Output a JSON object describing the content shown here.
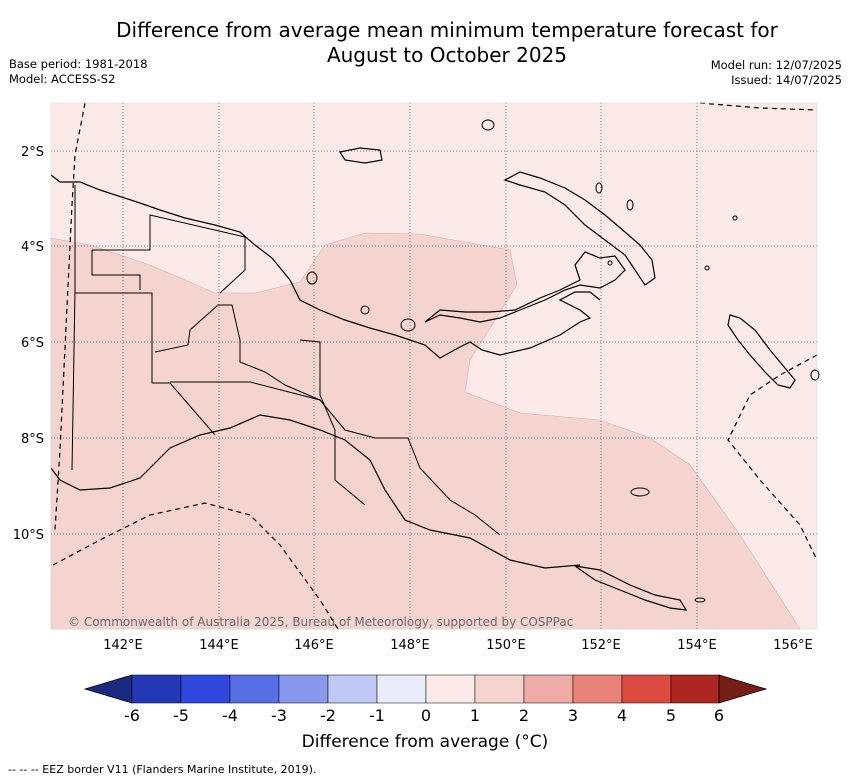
{
  "title_line1": "Difference from average mean minimum temperature forecast for",
  "title_line2": "August to October 2025",
  "meta_left": [
    "Base period: 1981-2018",
    "Model: ACCESS-S2"
  ],
  "meta_right": [
    "Model run: 12/07/2025",
    "Issued: 14/07/2025"
  ],
  "lon_labels": [
    "142°E",
    "144°E",
    "146°E",
    "148°E",
    "150°E",
    "152°E",
    "154°E",
    "156°E"
  ],
  "lat_labels": [
    "2°S",
    "4°S",
    "6°S",
    "8°S",
    "10°S"
  ],
  "copyright": "© Commonwealth of Australia 2025, Bureau of Meteorology, supported by COSPPac",
  "colorbar": {
    "title": "Difference from average (°C)",
    "ticks": [
      "-6",
      "-5",
      "-4",
      "-3",
      "-2",
      "-1",
      "0",
      "1",
      "2",
      "3",
      "4",
      "5",
      "6"
    ],
    "colors": [
      "#1a2a80",
      "#2338b6",
      "#2f49df",
      "#566fe6",
      "#8898ee",
      "#c0c8f5",
      "#e8ecfb",
      "#fbeae7",
      "#f5d4d0",
      "#efaba5",
      "#e8837a",
      "#dc4a40",
      "#ad2620",
      "#751e16"
    ]
  },
  "footnote": "-- -- -- EEZ border V11 (Flanders Marine Institute, 2019)."
}
